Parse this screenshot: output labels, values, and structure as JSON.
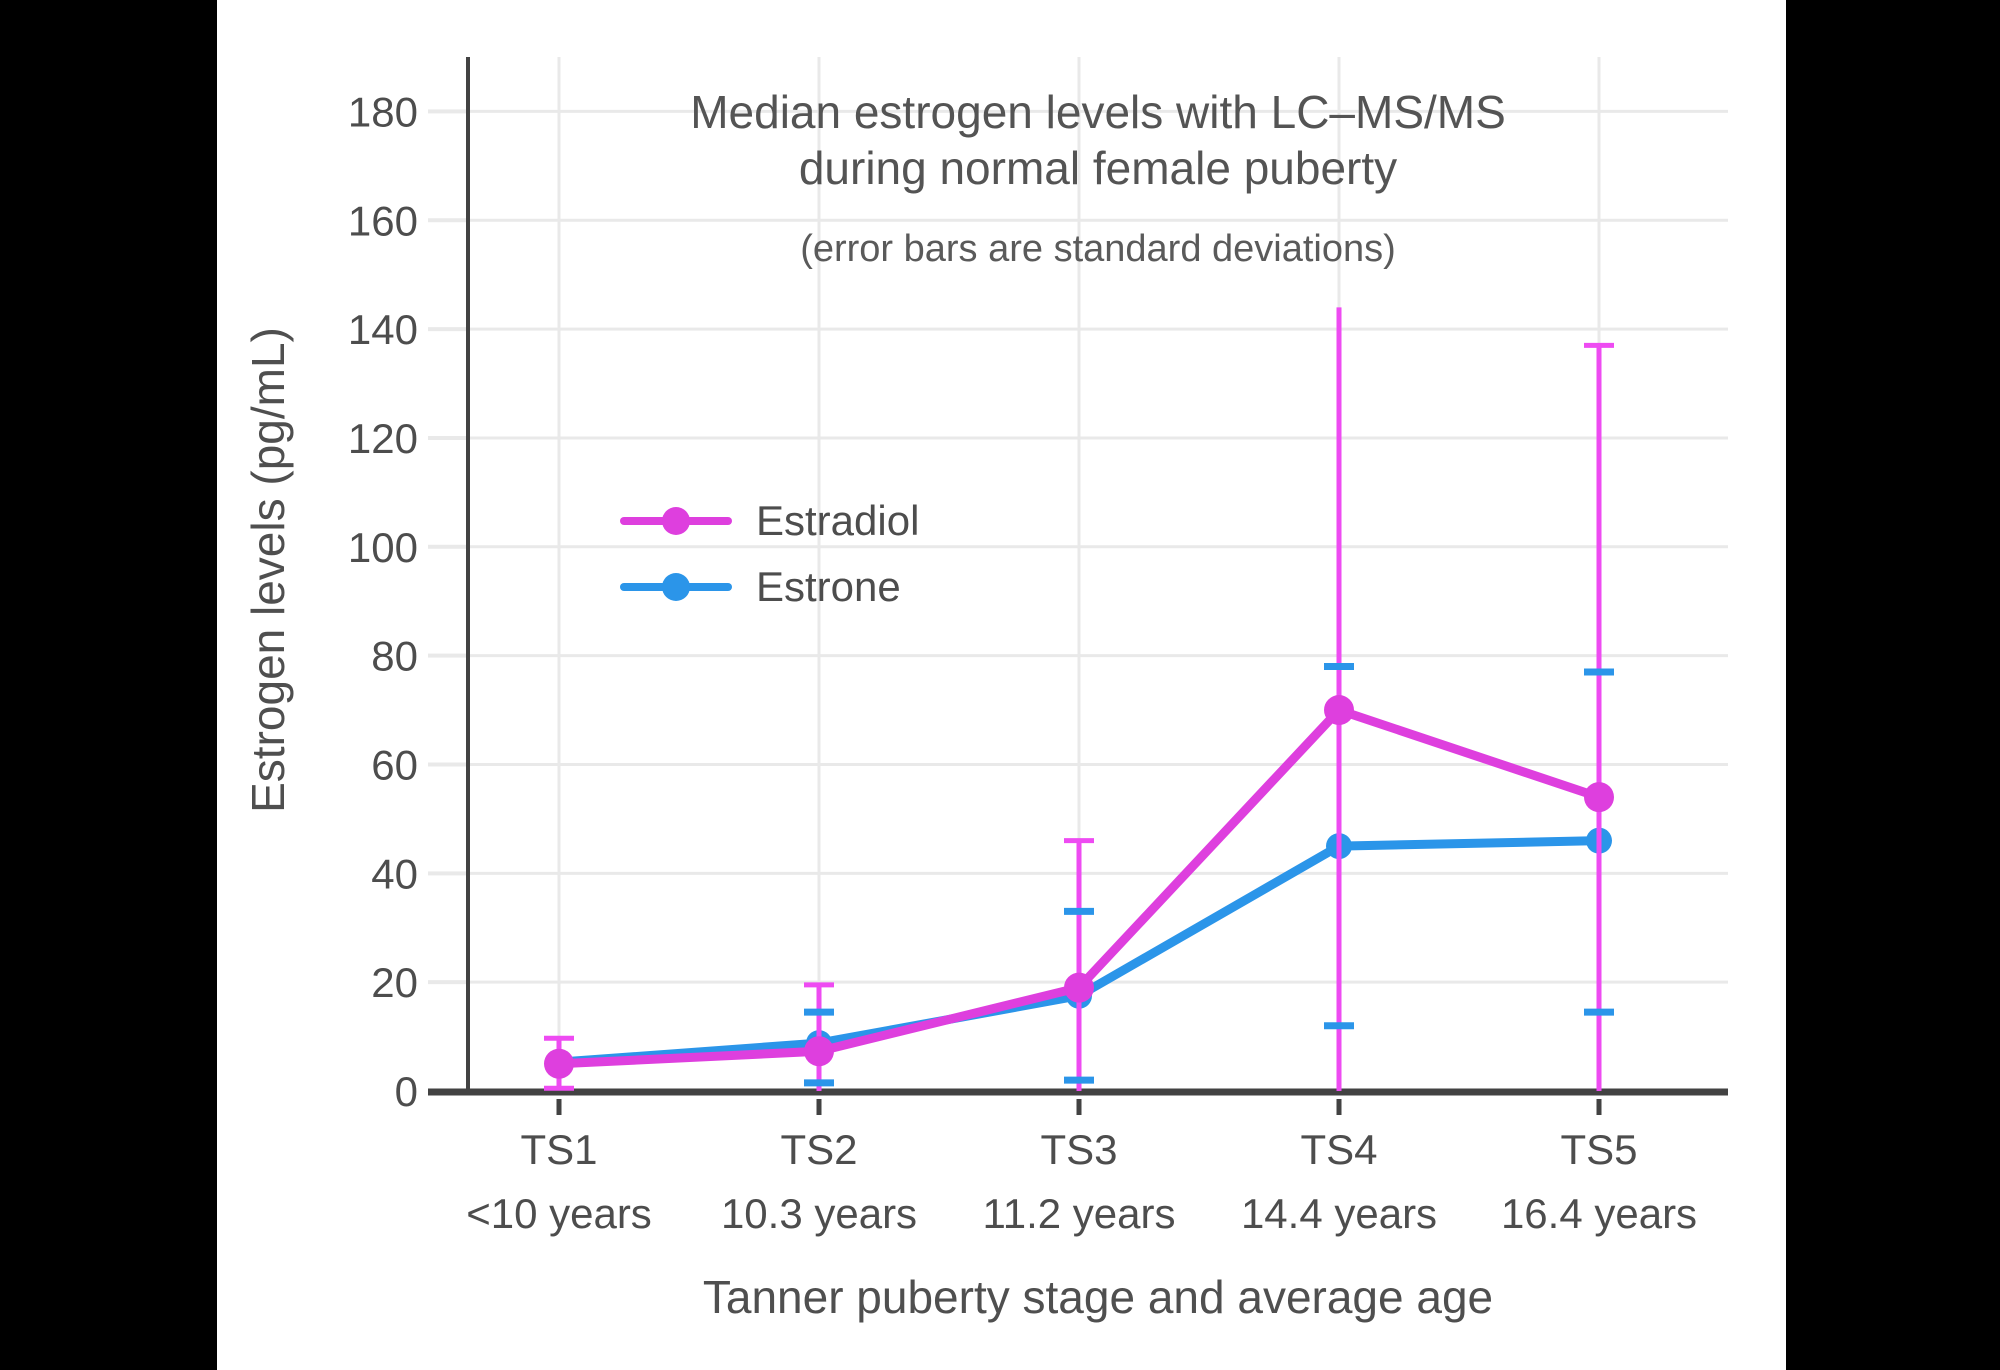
{
  "frame": {
    "background_color": "#000000",
    "panel_color": "#ffffff"
  },
  "chart_data": {
    "type": "line",
    "title_line1": "Median estrogen levels with LC–MS/MS",
    "title_line2": "during normal female puberty",
    "subtitle": "(error bars are standard deviations)",
    "xlabel": "Tanner puberty stage and average age",
    "ylabel": "Estrogen levels (pg/mL)",
    "categories": [
      "TS1",
      "TS2",
      "TS3",
      "TS4",
      "TS5"
    ],
    "category_ages": [
      "<10 years",
      "10.3 years",
      "11.2 years",
      "14.4 years",
      "16.4 years"
    ],
    "y_ticks": [
      0,
      20,
      40,
      60,
      80,
      100,
      120,
      140,
      160,
      180
    ],
    "ylim": [
      0,
      190
    ],
    "grid": true,
    "legend_position": "inside-upper-left",
    "axis_color": "#424242",
    "grid_color": "#e9e9e9",
    "text_color": "#4d4d4d",
    "series": [
      {
        "name": "Estrone",
        "color": "#2b95e9",
        "values": [
          5.3,
          8.8,
          17.5,
          45,
          46
        ],
        "error_low": [
          null,
          1.5,
          2,
          12,
          14.5
        ],
        "error_high": [
          null,
          14.5,
          33,
          78,
          77
        ],
        "note": "error bars drawn as horizontal caps only (vertical line hidden behind Estradiol bars)"
      },
      {
        "name": "Estradiol",
        "color": "#de3fde",
        "error_color": "#ee4bf2",
        "values": [
          5,
          7.3,
          19,
          70,
          54
        ],
        "error_low": [
          0.5,
          0,
          0,
          0,
          0
        ],
        "error_high": [
          9.7,
          19.5,
          46,
          144,
          137
        ],
        "cap_top": [
          true,
          true,
          true,
          false,
          true
        ],
        "cap_bottom": [
          true,
          false,
          false,
          false,
          false
        ]
      }
    ]
  }
}
